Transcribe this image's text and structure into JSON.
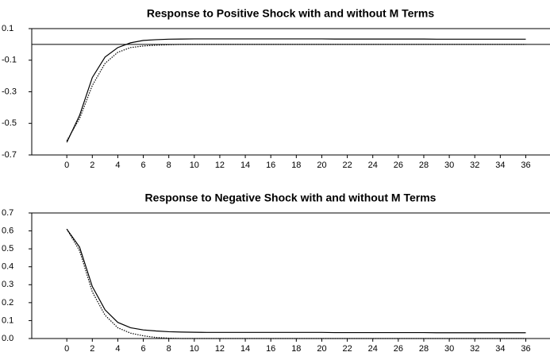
{
  "chart_data": [
    {
      "type": "line",
      "title": "Response to Positive Shock with and without M Terms",
      "x": [
        0,
        1,
        2,
        3,
        4,
        5,
        6,
        7,
        8,
        9,
        10,
        11,
        12,
        13,
        14,
        15,
        16,
        17,
        18,
        19,
        20,
        21,
        22,
        23,
        24,
        25,
        26,
        27,
        28,
        29,
        30,
        31,
        32,
        33,
        34,
        35,
        36
      ],
      "series": [
        {
          "color": "#000000",
          "style": "solid",
          "values": [
            -0.62,
            -0.45,
            -0.21,
            -0.08,
            -0.02,
            0.01,
            0.025,
            0.03,
            0.033,
            0.034,
            0.035,
            0.035,
            0.035,
            0.035,
            0.035,
            0.035,
            0.035,
            0.035,
            0.035,
            0.035,
            0.035,
            0.034,
            0.034,
            0.034,
            0.034,
            0.034,
            0.034,
            0.034,
            0.034,
            0.033,
            0.033,
            0.033,
            0.033,
            0.033,
            0.033,
            0.033,
            0.033
          ]
        },
        {
          "color": "#000000",
          "style": "dotted",
          "values": [
            -0.61,
            -0.47,
            -0.26,
            -0.12,
            -0.05,
            -0.02,
            -0.01,
            -0.005,
            -0.002,
            0,
            0,
            0,
            0,
            0,
            0,
            0,
            0,
            0,
            0,
            0,
            0,
            0,
            0,
            0,
            0,
            0,
            0,
            0,
            0,
            0,
            0,
            0,
            0,
            0,
            0,
            0,
            0
          ]
        }
      ],
      "xlim": [
        -2.75,
        37.9
      ],
      "xticks": [
        0,
        2,
        4,
        6,
        8,
        10,
        12,
        14,
        16,
        18,
        20,
        22,
        24,
        26,
        28,
        30,
        32,
        34,
        36
      ],
      "ylim": [
        -0.7,
        0.1
      ],
      "yticks": [
        0.1,
        -0.1,
        -0.3,
        -0.5,
        -0.7
      ]
    },
    {
      "type": "line",
      "title": "Response to Negative Shock with and without M Terms",
      "x": [
        0,
        1,
        2,
        3,
        4,
        5,
        6,
        7,
        8,
        9,
        10,
        11,
        12,
        13,
        14,
        15,
        16,
        17,
        18,
        19,
        20,
        21,
        22,
        23,
        24,
        25,
        26,
        27,
        28,
        29,
        30,
        31,
        32,
        33,
        34,
        35,
        36
      ],
      "series": [
        {
          "color": "#000000",
          "style": "solid",
          "values": [
            0.61,
            0.51,
            0.29,
            0.16,
            0.09,
            0.06,
            0.048,
            0.042,
            0.038,
            0.036,
            0.035,
            0.034,
            0.034,
            0.034,
            0.034,
            0.034,
            0.034,
            0.034,
            0.034,
            0.034,
            0.034,
            0.033,
            0.033,
            0.033,
            0.033,
            0.033,
            0.033,
            0.033,
            0.033,
            0.032,
            0.032,
            0.032,
            0.032,
            0.032,
            0.032,
            0.032,
            0.032
          ]
        },
        {
          "color": "#000000",
          "style": "dotted",
          "values": [
            0.61,
            0.49,
            0.26,
            0.13,
            0.06,
            0.03,
            0.015,
            0.006,
            0.002,
            0,
            0,
            0,
            0,
            0,
            0,
            0,
            0,
            0,
            0,
            0,
            0,
            0,
            0,
            0,
            0,
            0,
            0,
            0,
            0,
            0,
            0,
            0,
            0,
            0,
            0,
            0,
            0
          ]
        }
      ],
      "xlim": [
        -2.75,
        37.9
      ],
      "xticks": [
        0,
        2,
        4,
        6,
        8,
        10,
        12,
        14,
        16,
        18,
        20,
        22,
        24,
        26,
        28,
        30,
        32,
        34,
        36
      ],
      "ylim": [
        0,
        0.7
      ],
      "yticks": [
        {
          "value": 0,
          "label": "0.0"
        },
        0.1,
        0.2,
        0.3,
        0.4,
        0.5,
        0.6,
        0.7
      ]
    }
  ]
}
